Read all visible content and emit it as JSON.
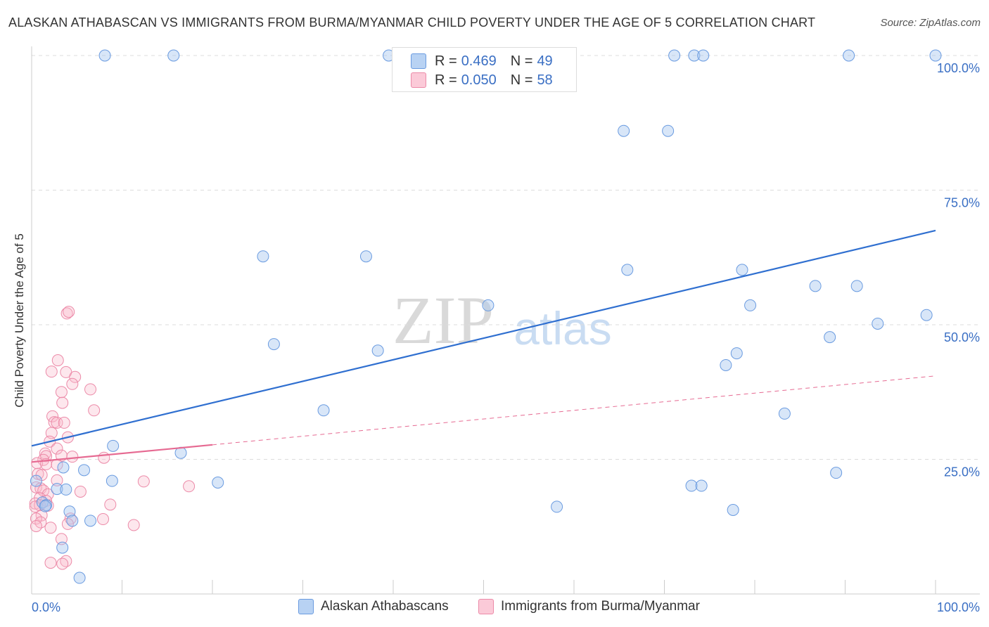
{
  "title": "ALASKAN ATHABASCAN VS IMMIGRANTS FROM BURMA/MYANMAR CHILD POVERTY UNDER THE AGE OF 5 CORRELATION CHART",
  "source": "Source: ZipAtlas.com",
  "watermark": {
    "zip": "ZIP",
    "atlas": "atlas"
  },
  "legend": {
    "rows": [
      {
        "r_label": "R = ",
        "r_value": "0.469",
        "n_label": "N = ",
        "n_value": "49"
      },
      {
        "r_label": "R = ",
        "r_value": "0.050",
        "n_label": "N = ",
        "n_value": "58"
      }
    ]
  },
  "colors": {
    "blue_fill": "#a9c8f0",
    "blue_stroke": "#6a9be0",
    "blue_line": "#2f6fd0",
    "pink_fill": "#f8b9cb",
    "pink_stroke": "#ec8aa8",
    "pink_line": "#e66a92",
    "axis_text": "#3a6fc4"
  },
  "chart_data": {
    "type": "scatter",
    "title": "ALASKAN ATHABASCAN VS IMMIGRANTS FROM BURMA/MYANMAR CHILD POVERTY UNDER THE AGE OF 5 CORRELATION CHART",
    "xlabel": "",
    "ylabel": "Child Poverty Under the Age of 5",
    "xlim": [
      0,
      100
    ],
    "ylim": [
      0,
      100
    ],
    "x_tick_labels": [
      "0.0%",
      "100.0%"
    ],
    "y_tick_labels": [
      {
        "value": 100,
        "label": "100.0%"
      },
      {
        "value": 75,
        "label": "75.0%"
      },
      {
        "value": 50,
        "label": "50.0%"
      },
      {
        "value": 25,
        "label": "25.0%"
      }
    ],
    "legend_position": "bottom-center",
    "series": [
      {
        "name": "Alaskan Athabascans",
        "color": "#a9c8f0",
        "r": 0.469,
        "n": 49,
        "trend": {
          "x": [
            0,
            100
          ],
          "y": [
            27.5,
            67.5
          ],
          "style": "solid",
          "x_end": 100
        },
        "points": [
          [
            8.1,
            100
          ],
          [
            15.7,
            100
          ],
          [
            39.5,
            100
          ],
          [
            71.1,
            100
          ],
          [
            73.3,
            100
          ],
          [
            74.3,
            100
          ],
          [
            90.4,
            100
          ],
          [
            100,
            100
          ],
          [
            65.5,
            86
          ],
          [
            70.4,
            86
          ],
          [
            25.6,
            62.7
          ],
          [
            37.0,
            62.7
          ],
          [
            65.9,
            60.2
          ],
          [
            78.6,
            60.2
          ],
          [
            86.7,
            57.2
          ],
          [
            91.3,
            57.2
          ],
          [
            50.5,
            53.6
          ],
          [
            79.5,
            53.6
          ],
          [
            99.0,
            51.8
          ],
          [
            93.6,
            50.2
          ],
          [
            88.3,
            47.7
          ],
          [
            26.8,
            46.4
          ],
          [
            38.3,
            45.2
          ],
          [
            78.0,
            44.7
          ],
          [
            76.8,
            42.5
          ],
          [
            32.3,
            34.1
          ],
          [
            83.3,
            33.5
          ],
          [
            9.0,
            27.5
          ],
          [
            16.5,
            26.2
          ],
          [
            0.5,
            21.0
          ],
          [
            3.5,
            23.5
          ],
          [
            5.8,
            23.0
          ],
          [
            8.9,
            21.0
          ],
          [
            20.6,
            20.7
          ],
          [
            73.0,
            20.1
          ],
          [
            74.1,
            20.1
          ],
          [
            89.0,
            22.5
          ],
          [
            1.2,
            17.0
          ],
          [
            1.6,
            16.5
          ],
          [
            1.5,
            16.3
          ],
          [
            2.8,
            19.5
          ],
          [
            3.8,
            19.4
          ],
          [
            58.1,
            16.2
          ],
          [
            77.6,
            15.6
          ],
          [
            4.2,
            15.3
          ],
          [
            4.5,
            13.6
          ],
          [
            6.5,
            13.6
          ],
          [
            3.4,
            8.6
          ],
          [
            5.3,
            3.0
          ]
        ]
      },
      {
        "name": "Immigrants from Burma/Myanmar",
        "color": "#f8b9cb",
        "r": 0.05,
        "n": 58,
        "trend": {
          "x": [
            0,
            100
          ],
          "y": [
            24.5,
            40.5
          ],
          "style": "solid-then-dashed",
          "solid_until": 20
        },
        "points": [
          [
            3.9,
            52.1
          ],
          [
            4.1,
            52.4
          ],
          [
            2.9,
            43.4
          ],
          [
            2.2,
            41.3
          ],
          [
            3.8,
            41.2
          ],
          [
            4.8,
            40.3
          ],
          [
            4.5,
            39.0
          ],
          [
            6.5,
            38.0
          ],
          [
            3.3,
            37.5
          ],
          [
            3.4,
            35.5
          ],
          [
            6.9,
            34.1
          ],
          [
            2.3,
            33.0
          ],
          [
            2.5,
            31.9
          ],
          [
            2.8,
            31.8
          ],
          [
            3.6,
            31.8
          ],
          [
            2.2,
            29.9
          ],
          [
            4.0,
            29.1
          ],
          [
            2.0,
            28.3
          ],
          [
            2.8,
            27.0
          ],
          [
            1.5,
            26.1
          ],
          [
            1.6,
            25.6
          ],
          [
            3.3,
            25.7
          ],
          [
            4.5,
            25.5
          ],
          [
            8.0,
            25.3
          ],
          [
            1.3,
            24.9
          ],
          [
            0.6,
            24.3
          ],
          [
            1.6,
            24.1
          ],
          [
            2.8,
            24.0
          ],
          [
            0.7,
            22.3
          ],
          [
            1.1,
            22.1
          ],
          [
            2.8,
            21.1
          ],
          [
            12.4,
            20.9
          ],
          [
            17.4,
            20.0
          ],
          [
            0.5,
            19.8
          ],
          [
            1.0,
            19.6
          ],
          [
            1.3,
            19.2
          ],
          [
            5.4,
            19.0
          ],
          [
            1.8,
            18.5
          ],
          [
            0.9,
            17.8
          ],
          [
            1.6,
            17.3
          ],
          [
            0.4,
            16.8
          ],
          [
            0.9,
            16.5
          ],
          [
            0.4,
            16.2
          ],
          [
            1.8,
            16.4
          ],
          [
            8.7,
            16.6
          ],
          [
            1.1,
            14.6
          ],
          [
            0.5,
            14.0
          ],
          [
            1.0,
            13.3
          ],
          [
            7.9,
            13.9
          ],
          [
            4.3,
            14.0
          ],
          [
            4.0,
            13.0
          ],
          [
            11.3,
            12.8
          ],
          [
            0.5,
            12.6
          ],
          [
            2.1,
            12.3
          ],
          [
            3.3,
            10.2
          ],
          [
            3.8,
            6.1
          ],
          [
            2.1,
            5.8
          ],
          [
            3.4,
            5.6
          ]
        ]
      }
    ]
  },
  "bottom_legend": [
    "Alaskan Athabascans",
    "Immigrants from Burma/Myanmar"
  ]
}
